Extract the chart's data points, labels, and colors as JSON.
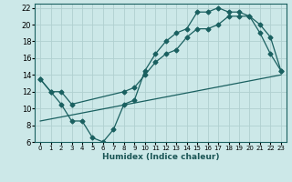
{
  "title": "",
  "xlabel": "Humidex (Indice chaleur)",
  "bg_color": "#cce8e8",
  "grid_color": "#b0d0d0",
  "line_color": "#1a6060",
  "xlim": [
    -0.5,
    23.5
  ],
  "ylim": [
    6,
    22.5
  ],
  "xticks": [
    0,
    1,
    2,
    3,
    4,
    5,
    6,
    7,
    8,
    9,
    10,
    11,
    12,
    13,
    14,
    15,
    16,
    17,
    18,
    19,
    20,
    21,
    22,
    23
  ],
  "yticks": [
    6,
    8,
    10,
    12,
    14,
    16,
    18,
    20,
    22
  ],
  "line1_x": [
    0,
    1,
    2,
    3,
    4,
    5,
    6,
    7,
    8,
    9,
    10,
    11,
    12,
    13,
    14,
    15,
    16,
    17,
    18,
    19,
    20,
    21,
    22,
    23
  ],
  "line1_y": [
    13.5,
    12.0,
    10.5,
    8.5,
    8.5,
    6.5,
    6.0,
    7.5,
    10.5,
    11.0,
    14.5,
    16.5,
    18.0,
    19.0,
    19.5,
    21.5,
    21.5,
    22.0,
    21.5,
    21.5,
    21.0,
    19.0,
    16.5,
    14.5
  ],
  "line2_x": [
    0,
    1,
    2,
    3,
    8,
    9,
    10,
    11,
    12,
    13,
    14,
    15,
    16,
    17,
    18,
    19,
    20,
    21,
    22,
    23
  ],
  "line2_y": [
    13.5,
    12.0,
    12.0,
    10.5,
    12.0,
    12.5,
    14.0,
    15.5,
    16.5,
    17.0,
    18.5,
    19.5,
    19.5,
    20.0,
    21.0,
    21.0,
    21.0,
    20.0,
    18.5,
    14.5
  ],
  "line3_x": [
    0,
    23
  ],
  "line3_y": [
    8.5,
    14.0
  ],
  "xlabel_fontsize": 6.5,
  "ytick_fontsize": 6.0,
  "xtick_fontsize": 5.0
}
